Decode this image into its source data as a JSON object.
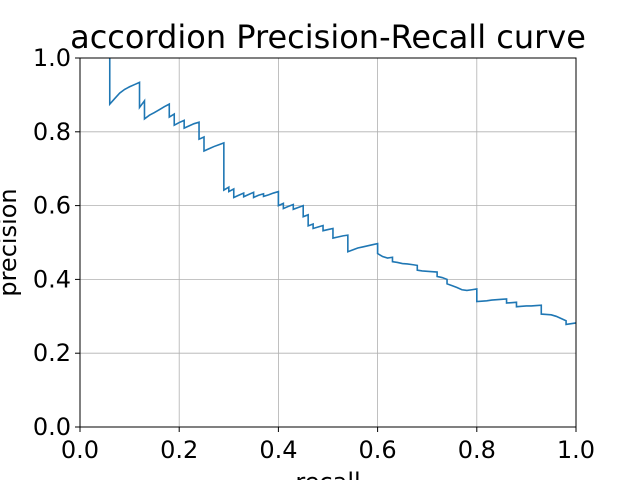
{
  "chart_data": {
    "type": "line",
    "title": "accordion Precision-Recall curve",
    "xlabel": "recall",
    "ylabel": "precision",
    "xlim": [
      0.0,
      1.0
    ],
    "ylim": [
      0.0,
      1.0
    ],
    "grid": true,
    "x_ticks": [
      "0.0",
      "0.2",
      "0.4",
      "0.6",
      "0.8",
      "1.0"
    ],
    "y_ticks": [
      "0.0",
      "0.2",
      "0.4",
      "0.6",
      "0.8",
      "1.0"
    ],
    "series": [
      {
        "color": "#1f77b4",
        "points": [
          [
            0.06,
            1.0
          ],
          [
            0.06,
            0.875
          ],
          [
            0.07,
            0.89
          ],
          [
            0.08,
            0.905
          ],
          [
            0.09,
            0.915
          ],
          [
            0.1,
            0.922
          ],
          [
            0.11,
            0.928
          ],
          [
            0.12,
            0.934
          ],
          [
            0.12,
            0.866
          ],
          [
            0.13,
            0.884
          ],
          [
            0.13,
            0.835
          ],
          [
            0.14,
            0.845
          ],
          [
            0.15,
            0.852
          ],
          [
            0.16,
            0.86
          ],
          [
            0.17,
            0.868
          ],
          [
            0.18,
            0.875
          ],
          [
            0.18,
            0.84
          ],
          [
            0.19,
            0.848
          ],
          [
            0.19,
            0.818
          ],
          [
            0.2,
            0.825
          ],
          [
            0.21,
            0.831
          ],
          [
            0.21,
            0.81
          ],
          [
            0.22,
            0.816
          ],
          [
            0.23,
            0.822
          ],
          [
            0.24,
            0.826
          ],
          [
            0.24,
            0.78
          ],
          [
            0.25,
            0.786
          ],
          [
            0.25,
            0.748
          ],
          [
            0.26,
            0.754
          ],
          [
            0.27,
            0.76
          ],
          [
            0.28,
            0.765
          ],
          [
            0.29,
            0.77
          ],
          [
            0.29,
            0.642
          ],
          [
            0.3,
            0.65
          ],
          [
            0.3,
            0.638
          ],
          [
            0.31,
            0.645
          ],
          [
            0.31,
            0.622
          ],
          [
            0.32,
            0.628
          ],
          [
            0.33,
            0.634
          ],
          [
            0.33,
            0.624
          ],
          [
            0.34,
            0.63
          ],
          [
            0.35,
            0.636
          ],
          [
            0.35,
            0.622
          ],
          [
            0.36,
            0.628
          ],
          [
            0.37,
            0.632
          ],
          [
            0.37,
            0.625
          ],
          [
            0.38,
            0.629
          ],
          [
            0.39,
            0.634
          ],
          [
            0.4,
            0.638
          ],
          [
            0.4,
            0.6
          ],
          [
            0.41,
            0.606
          ],
          [
            0.41,
            0.592
          ],
          [
            0.42,
            0.598
          ],
          [
            0.43,
            0.603
          ],
          [
            0.43,
            0.59
          ],
          [
            0.44,
            0.595
          ],
          [
            0.45,
            0.6
          ],
          [
            0.45,
            0.57
          ],
          [
            0.46,
            0.575
          ],
          [
            0.46,
            0.545
          ],
          [
            0.47,
            0.55
          ],
          [
            0.47,
            0.538
          ],
          [
            0.48,
            0.542
          ],
          [
            0.49,
            0.546
          ],
          [
            0.49,
            0.532
          ],
          [
            0.5,
            0.535
          ],
          [
            0.51,
            0.538
          ],
          [
            0.51,
            0.512
          ],
          [
            0.52,
            0.515
          ],
          [
            0.53,
            0.518
          ],
          [
            0.54,
            0.52
          ],
          [
            0.54,
            0.475
          ],
          [
            0.55,
            0.48
          ],
          [
            0.56,
            0.485
          ],
          [
            0.57,
            0.488
          ],
          [
            0.58,
            0.491
          ],
          [
            0.59,
            0.494
          ],
          [
            0.6,
            0.497
          ],
          [
            0.6,
            0.47
          ],
          [
            0.61,
            0.462
          ],
          [
            0.62,
            0.458
          ],
          [
            0.63,
            0.46
          ],
          [
            0.63,
            0.448
          ],
          [
            0.64,
            0.446
          ],
          [
            0.65,
            0.443
          ],
          [
            0.66,
            0.442
          ],
          [
            0.67,
            0.44
          ],
          [
            0.68,
            0.438
          ],
          [
            0.68,
            0.425
          ],
          [
            0.69,
            0.423
          ],
          [
            0.7,
            0.422
          ],
          [
            0.71,
            0.421
          ],
          [
            0.72,
            0.42
          ],
          [
            0.72,
            0.408
          ],
          [
            0.73,
            0.405
          ],
          [
            0.74,
            0.4
          ],
          [
            0.74,
            0.388
          ],
          [
            0.75,
            0.383
          ],
          [
            0.76,
            0.378
          ],
          [
            0.77,
            0.372
          ],
          [
            0.78,
            0.37
          ],
          [
            0.79,
            0.372
          ],
          [
            0.8,
            0.374
          ],
          [
            0.8,
            0.34
          ],
          [
            0.81,
            0.341
          ],
          [
            0.82,
            0.342
          ],
          [
            0.83,
            0.344
          ],
          [
            0.84,
            0.345
          ],
          [
            0.85,
            0.346
          ],
          [
            0.86,
            0.347
          ],
          [
            0.86,
            0.336
          ],
          [
            0.87,
            0.337
          ],
          [
            0.88,
            0.338
          ],
          [
            0.88,
            0.326
          ],
          [
            0.89,
            0.327
          ],
          [
            0.9,
            0.328
          ],
          [
            0.91,
            0.328
          ],
          [
            0.92,
            0.329
          ],
          [
            0.93,
            0.33
          ],
          [
            0.93,
            0.306
          ],
          [
            0.94,
            0.305
          ],
          [
            0.95,
            0.304
          ],
          [
            0.96,
            0.3
          ],
          [
            0.97,
            0.294
          ],
          [
            0.98,
            0.288
          ],
          [
            0.98,
            0.278
          ],
          [
            0.99,
            0.28
          ],
          [
            1.0,
            0.282
          ]
        ]
      }
    ]
  }
}
